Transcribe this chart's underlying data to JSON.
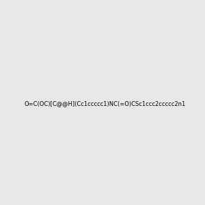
{
  "smiles": "O=C(OC)[C@@H](Cc1ccccc1)NC(=O)CSc1ccc2ccccc2n1",
  "image_size": 300,
  "background_color": "#e8e8e8",
  "title": ""
}
